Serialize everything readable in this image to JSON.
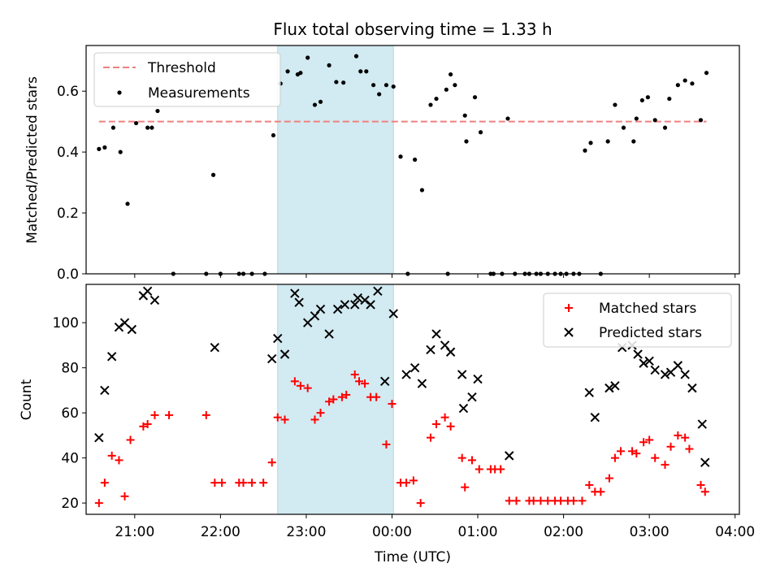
{
  "figure_title": "Flux total observing time = 1.33 h",
  "x_tick_labels": [
    "21:00",
    "22:00",
    "23:00",
    "00:00",
    "01:00",
    "02:00",
    "03:00",
    "04:00"
  ],
  "x_axis_label": "Time (UTC)",
  "colors": {
    "threshold": "#f08080",
    "measurement": "#000000",
    "matched": "#ff0000",
    "predicted": "#000000",
    "shade": "#add8e6"
  },
  "chart_data": [
    {
      "type": "scatter",
      "title": "Flux total observing time = 1.33 h",
      "ylabel": "Matched/Predicted stars",
      "xlabel": "",
      "ylim": [
        0,
        0.75
      ],
      "xlim": [
        "20:26",
        "04:03"
      ],
      "yticks": [
        "0.0",
        "0.2",
        "0.4",
        "0.6"
      ],
      "legend": {
        "placement": "top-left",
        "entries": [
          "Threshold",
          "Measurements"
        ]
      },
      "shaded_interval": {
        "start": "22:40",
        "end": "00:01"
      },
      "threshold": {
        "name": "Threshold",
        "value": 0.5,
        "x_start": "20:35",
        "x_end": "03:40"
      },
      "series": [
        {
          "name": "Measurements",
          "points": [
            [
              "20:35",
              0.41
            ],
            [
              "20:39",
              0.415
            ],
            [
              "20:45",
              0.48
            ],
            [
              "20:50",
              0.4
            ],
            [
              "20:55",
              0.23
            ],
            [
              "21:01",
              0.495
            ],
            [
              "21:09",
              0.48
            ],
            [
              "21:12",
              0.48
            ],
            [
              "21:16",
              0.535
            ],
            [
              "21:27",
              0.0
            ],
            [
              "21:50",
              0.0
            ],
            [
              "21:55",
              0.325
            ],
            [
              "22:00",
              0.0
            ],
            [
              "22:13",
              0.0
            ],
            [
              "22:16",
              0.0
            ],
            [
              "22:22",
              0.0
            ],
            [
              "22:31",
              0.0
            ],
            [
              "22:37",
              0.455
            ],
            [
              "22:42",
              0.625
            ],
            [
              "22:47",
              0.665
            ],
            [
              "22:54",
              0.655
            ],
            [
              "22:56",
              0.66
            ],
            [
              "23:01",
              0.71
            ],
            [
              "23:06",
              0.555
            ],
            [
              "23:10",
              0.565
            ],
            [
              "23:16",
              0.685
            ],
            [
              "23:21",
              0.63
            ],
            [
              "23:26",
              0.628
            ],
            [
              "23:35",
              0.715
            ],
            [
              "23:38",
              0.665
            ],
            [
              "23:42",
              0.665
            ],
            [
              "23:47",
              0.62
            ],
            [
              "23:51",
              0.59
            ],
            [
              "23:56",
              0.62
            ],
            [
              "00:01",
              0.615
            ],
            [
              "00:06",
              0.385
            ],
            [
              "00:11",
              0.0
            ],
            [
              "00:16",
              0.375
            ],
            [
              "00:21",
              0.275
            ],
            [
              "00:27",
              0.555
            ],
            [
              "00:31",
              0.575
            ],
            [
              "00:38",
              0.605
            ],
            [
              "00:39",
              0.0
            ],
            [
              "00:41",
              0.655
            ],
            [
              "00:44",
              0.62
            ],
            [
              "00:51",
              0.52
            ],
            [
              "00:52",
              0.435
            ],
            [
              "00:58",
              0.58
            ],
            [
              "01:02",
              0.465
            ],
            [
              "01:09",
              0.0
            ],
            [
              "01:11",
              0.0
            ],
            [
              "01:17",
              0.0
            ],
            [
              "01:21",
              0.51
            ],
            [
              "01:26",
              0.0
            ],
            [
              "01:33",
              0.0
            ],
            [
              "01:36",
              0.0
            ],
            [
              "01:41",
              0.0
            ],
            [
              "01:44",
              0.0
            ],
            [
              "01:49",
              0.0
            ],
            [
              "01:54",
              0.0
            ],
            [
              "01:58",
              0.0
            ],
            [
              "02:02",
              0.0
            ],
            [
              "02:07",
              0.0
            ],
            [
              "02:11",
              0.0
            ],
            [
              "02:15",
              0.405
            ],
            [
              "02:19",
              0.43
            ],
            [
              "02:26",
              0.0
            ],
            [
              "02:31",
              0.435
            ],
            [
              "02:36",
              0.555
            ],
            [
              "02:42",
              0.48
            ],
            [
              "02:49",
              0.435
            ],
            [
              "02:51",
              0.51
            ],
            [
              "02:55",
              0.57
            ],
            [
              "02:59",
              0.58
            ],
            [
              "03:04",
              0.505
            ],
            [
              "03:11",
              0.48
            ],
            [
              "03:14",
              0.575
            ],
            [
              "03:20",
              0.62
            ],
            [
              "03:25",
              0.635
            ],
            [
              "03:30",
              0.625
            ],
            [
              "03:36",
              0.505
            ],
            [
              "03:40",
              0.66
            ]
          ]
        }
      ]
    },
    {
      "type": "scatter",
      "title": "",
      "ylabel": "Count",
      "xlabel": "Time (UTC)",
      "ylim": [
        15,
        117
      ],
      "xlim": [
        "20:26",
        "04:03"
      ],
      "yticks": [
        "20",
        "40",
        "60",
        "80",
        "100"
      ],
      "legend": {
        "placement": "top-right",
        "entries": [
          "Matched stars",
          "Predicted stars"
        ]
      },
      "shaded_interval": {
        "start": "22:40",
        "end": "00:01"
      },
      "series": [
        {
          "name": "Matched stars",
          "marker": "+",
          "points": [
            [
              "20:35",
              20
            ],
            [
              "20:39",
              29
            ],
            [
              "20:44",
              41
            ],
            [
              "20:49",
              39
            ],
            [
              "20:53",
              23
            ],
            [
              "20:57",
              48
            ],
            [
              "21:06",
              54
            ],
            [
              "21:09",
              55
            ],
            [
              "21:14",
              59
            ],
            [
              "21:24",
              59
            ],
            [
              "21:50",
              59
            ],
            [
              "21:56",
              29
            ],
            [
              "22:01",
              29
            ],
            [
              "22:13",
              29
            ],
            [
              "22:16",
              29
            ],
            [
              "22:22",
              29
            ],
            [
              "22:30",
              29
            ],
            [
              "22:36",
              38
            ],
            [
              "22:40",
              58
            ],
            [
              "22:45",
              57
            ],
            [
              "22:52",
              74
            ],
            [
              "22:56",
              72
            ],
            [
              "23:01",
              71
            ],
            [
              "23:06",
              57
            ],
            [
              "23:10",
              60
            ],
            [
              "23:16",
              65
            ],
            [
              "23:19",
              66
            ],
            [
              "23:25",
              67
            ],
            [
              "23:28",
              68
            ],
            [
              "23:34",
              77
            ],
            [
              "23:37",
              74
            ],
            [
              "23:41",
              73
            ],
            [
              "23:45",
              67
            ],
            [
              "23:49",
              67
            ],
            [
              "23:56",
              46
            ],
            [
              "00:00",
              64
            ],
            [
              "00:06",
              29
            ],
            [
              "00:10",
              29
            ],
            [
              "00:15",
              30
            ],
            [
              "00:20",
              20
            ],
            [
              "00:27",
              49
            ],
            [
              "00:31",
              55
            ],
            [
              "00:37",
              58
            ],
            [
              "00:41",
              54
            ],
            [
              "00:49",
              40
            ],
            [
              "00:51",
              27
            ],
            [
              "00:56",
              39
            ],
            [
              "01:01",
              35
            ],
            [
              "01:09",
              35
            ],
            [
              "01:12",
              35
            ],
            [
              "01:16",
              35
            ],
            [
              "01:22",
              21
            ],
            [
              "01:27",
              21
            ],
            [
              "01:36",
              21
            ],
            [
              "01:39",
              21
            ],
            [
              "01:44",
              21
            ],
            [
              "01:49",
              21
            ],
            [
              "01:54",
              21
            ],
            [
              "01:58",
              21
            ],
            [
              "02:03",
              21
            ],
            [
              "02:07",
              21
            ],
            [
              "02:13",
              21
            ],
            [
              "02:18",
              28
            ],
            [
              "02:22",
              25
            ],
            [
              "02:26",
              25
            ],
            [
              "02:32",
              31
            ],
            [
              "02:36",
              40
            ],
            [
              "02:40",
              43
            ],
            [
              "02:48",
              43
            ],
            [
              "02:51",
              42
            ],
            [
              "02:56",
              47
            ],
            [
              "03:00",
              48
            ],
            [
              "03:04",
              40
            ],
            [
              "03:11",
              37
            ],
            [
              "03:15",
              45
            ],
            [
              "03:20",
              50
            ],
            [
              "03:25",
              49
            ],
            [
              "03:28",
              44
            ],
            [
              "03:36",
              28
            ],
            [
              "03:39",
              25
            ]
          ]
        },
        {
          "name": "Predicted stars",
          "marker": "x",
          "points": [
            [
              "20:35",
              49
            ],
            [
              "20:39",
              70
            ],
            [
              "20:44",
              85
            ],
            [
              "20:49",
              98
            ],
            [
              "20:53",
              100
            ],
            [
              "20:58",
              97
            ],
            [
              "21:06",
              112
            ],
            [
              "21:09",
              114
            ],
            [
              "21:14",
              110
            ],
            [
              "21:56",
              89
            ],
            [
              "22:36",
              84
            ],
            [
              "22:40",
              93
            ],
            [
              "22:45",
              86
            ],
            [
              "22:52",
              113
            ],
            [
              "22:55",
              109
            ],
            [
              "23:01",
              100
            ],
            [
              "23:06",
              103
            ],
            [
              "23:10",
              106
            ],
            [
              "23:16",
              95
            ],
            [
              "23:22",
              106
            ],
            [
              "23:27",
              108
            ],
            [
              "23:34",
              108
            ],
            [
              "23:36",
              111
            ],
            [
              "23:41",
              110
            ],
            [
              "23:45",
              108
            ],
            [
              "23:50",
              114
            ],
            [
              "23:55",
              74
            ],
            [
              "00:01",
              104
            ],
            [
              "00:10",
              77
            ],
            [
              "00:16",
              80
            ],
            [
              "00:21",
              73
            ],
            [
              "00:27",
              88
            ],
            [
              "00:31",
              95
            ],
            [
              "00:37",
              90
            ],
            [
              "00:41",
              87
            ],
            [
              "00:49",
              77
            ],
            [
              "00:50",
              62
            ],
            [
              "00:56",
              67
            ],
            [
              "01:00",
              75
            ],
            [
              "01:22",
              41
            ],
            [
              "02:18",
              69
            ],
            [
              "02:22",
              58
            ],
            [
              "02:32",
              71
            ],
            [
              "02:36",
              72
            ],
            [
              "02:41",
              89
            ],
            [
              "02:48",
              90
            ],
            [
              "02:52",
              86
            ],
            [
              "02:56",
              82
            ],
            [
              "03:00",
              83
            ],
            [
              "03:04",
              79
            ],
            [
              "03:11",
              77
            ],
            [
              "03:15",
              78
            ],
            [
              "03:20",
              81
            ],
            [
              "03:25",
              77
            ],
            [
              "03:30",
              71
            ],
            [
              "03:37",
              55
            ],
            [
              "03:39",
              38
            ]
          ]
        }
      ]
    }
  ]
}
